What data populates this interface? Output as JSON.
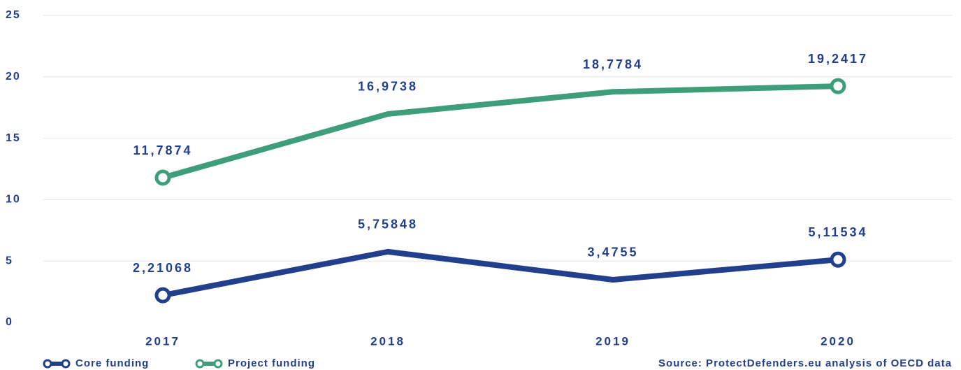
{
  "chart_data": {
    "type": "line",
    "categories": [
      "2017",
      "2018",
      "2019",
      "2020"
    ],
    "series": [
      {
        "name": "Core funding",
        "color": "#213f8c",
        "values": [
          2.21068,
          5.75848,
          3.4755,
          5.11534
        ],
        "value_labels": [
          "2,21068",
          "5,75848",
          "3,4755",
          "5,11534"
        ]
      },
      {
        "name": "Project funding",
        "color": "#3f9e7a",
        "values": [
          11.7874,
          16.9738,
          18.7784,
          19.2417
        ],
        "value_labels": [
          "11,7874",
          "16,9738",
          "18,7784",
          "19,2417"
        ]
      }
    ],
    "ylim": [
      0,
      25
    ],
    "yticks": [
      0,
      5,
      10,
      15,
      20,
      25
    ],
    "grid": true,
    "source": "Source: ProtectDefenders.eu analysis of OECD data"
  }
}
